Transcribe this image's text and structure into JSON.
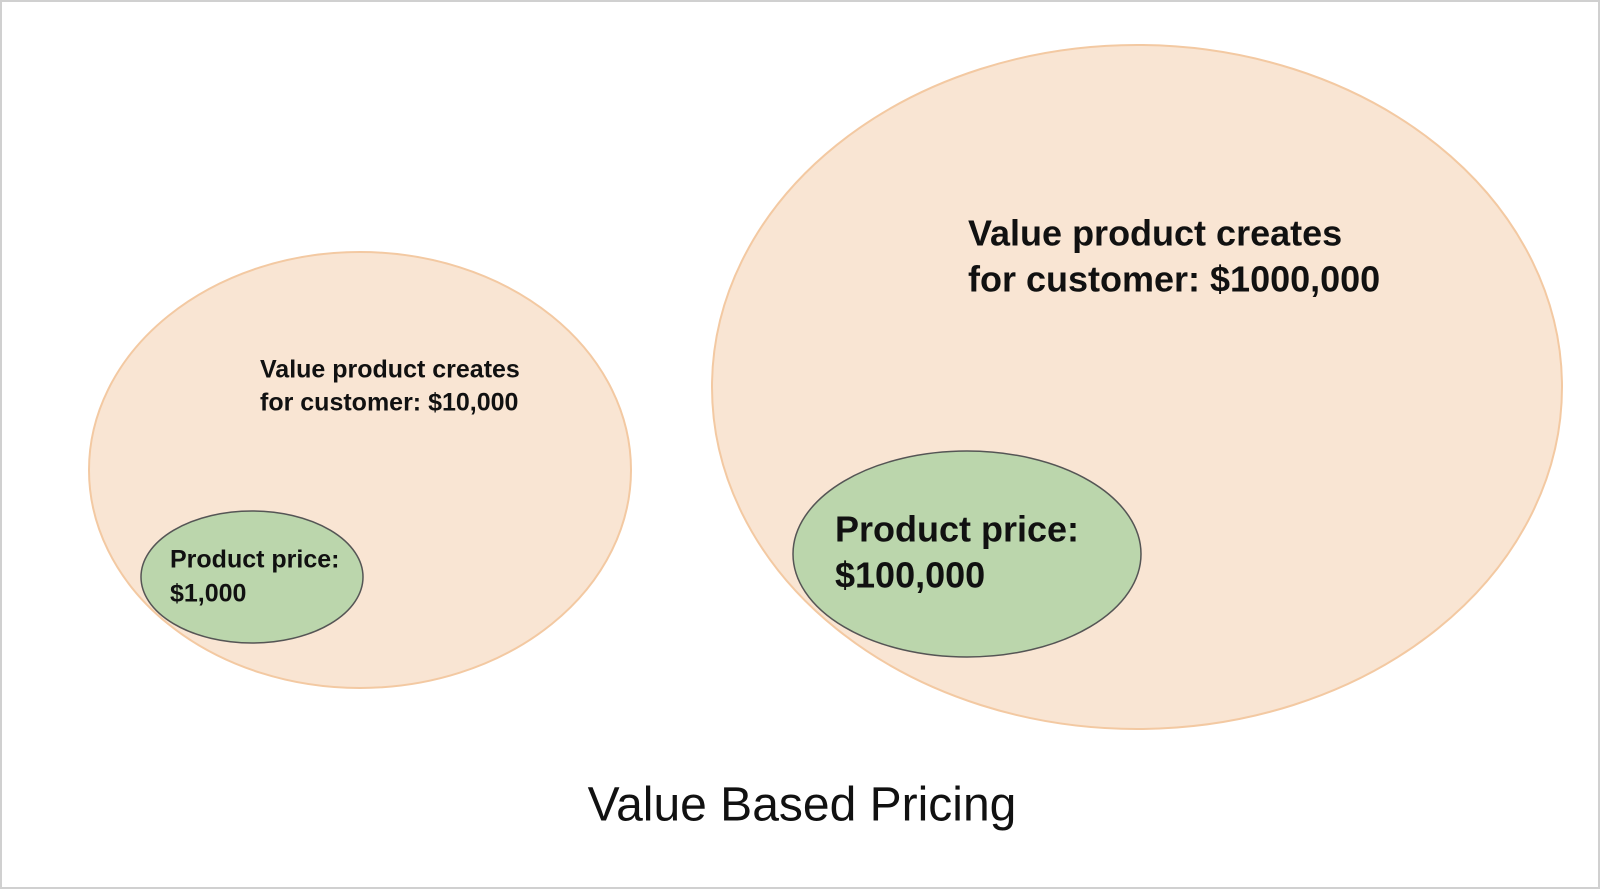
{
  "title": "Value Based Pricing",
  "groups": [
    {
      "value_text": [
        "Value product creates",
        "for customer: $10,000"
      ],
      "price_text": [
        "Product price:",
        "$1,000"
      ]
    },
    {
      "value_text": [
        "Value product creates",
        "for customer: $1000,000"
      ],
      "price_text": [
        "Product price:",
        "$100,000"
      ]
    }
  ]
}
